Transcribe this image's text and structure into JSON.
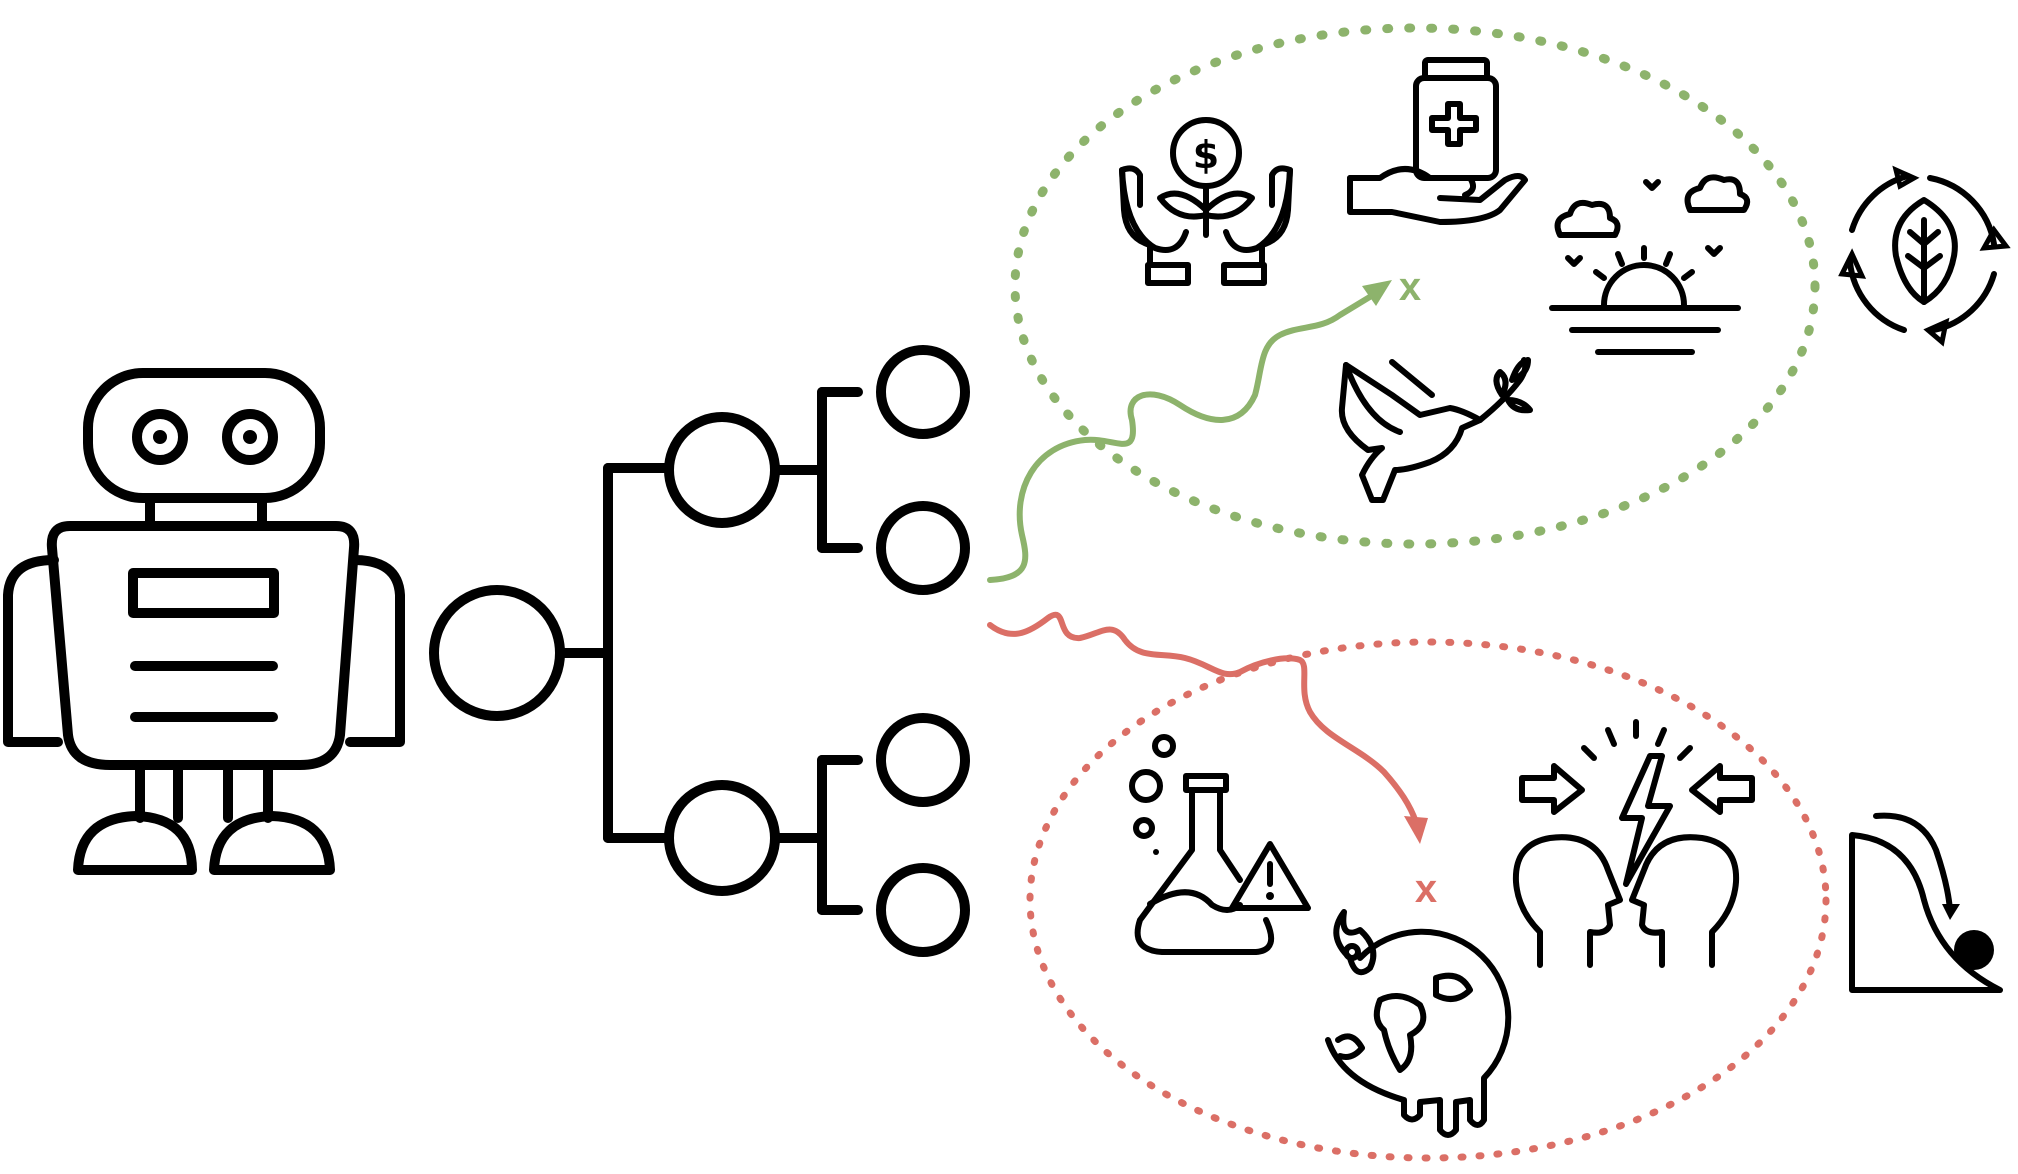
{
  "colors": {
    "ink": "#000000",
    "good": "#8db36c",
    "bad": "#db6f66",
    "background": "#ffffff"
  },
  "outcomes": {
    "good": {
      "marker": "x",
      "icons": [
        "money-growth-icon",
        "medicine-hand-icon",
        "sunrise-icon",
        "peace-dove-icon"
      ]
    },
    "bad": {
      "marker": "x",
      "icons": [
        "chemical-hazard-icon",
        "melting-earth-icon",
        "conflict-heads-icon"
      ]
    }
  },
  "side_icons": [
    "sustainability-cycle-icon",
    "slippery-slope-icon"
  ],
  "agent_icon": "robot-icon"
}
